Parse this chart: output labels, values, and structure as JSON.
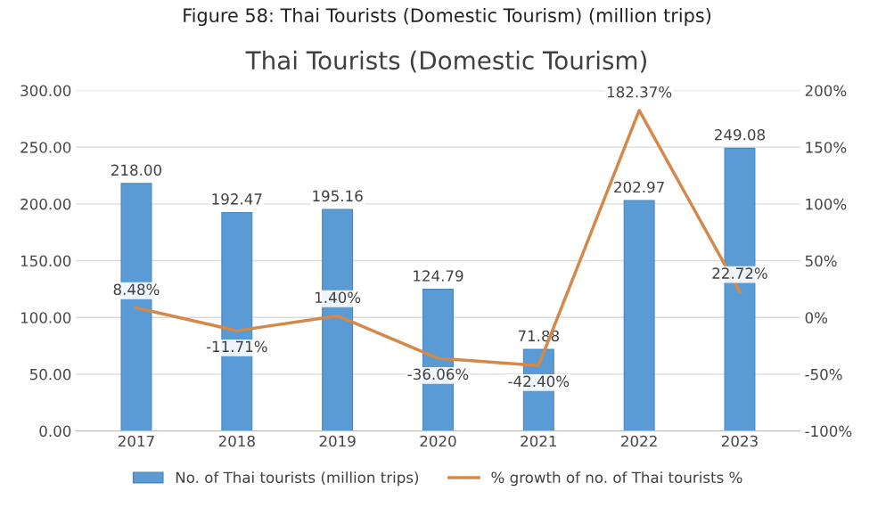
{
  "chart_data": {
    "type": "bar",
    "title": "Thai Tourists (Domestic Tourism)",
    "annotations": [
      "Figure 58: Thai Tourists (Domestic Tourism) (million trips)"
    ],
    "categories": [
      "2017",
      "2018",
      "2019",
      "2020",
      "2021",
      "2022",
      "2023"
    ],
    "series": [
      {
        "name": "No. of Thai tourists (million trips)",
        "color": "#5b9bd5",
        "values": [
          218.0,
          192.47,
          195.16,
          124.79,
          71.88,
          202.97,
          249.08
        ],
        "value_labels": [
          "218.00",
          "192.47",
          "195.16",
          "124.79",
          "71.88",
          "202.97",
          "249.08"
        ]
      },
      {
        "name": "% growth of no. of Thai tourists %",
        "type": "line",
        "axis": "y2",
        "color": "#d4884a",
        "values": [
          8.48,
          -11.71,
          1.4,
          -36.06,
          -42.4,
          182.37,
          22.72
        ],
        "value_labels": [
          "8.48%",
          "-11.71%",
          "1.40%",
          "-36.06%",
          "-42.40%",
          "182.37%",
          "22.72%"
        ]
      }
    ],
    "ylim": [
      0,
      300
    ],
    "yticks": [
      {
        "value": 0,
        "label": "0.00"
      },
      {
        "value": 50,
        "label": "50.00"
      },
      {
        "value": 100,
        "label": "100.00"
      },
      {
        "value": 150,
        "label": "150.00"
      },
      {
        "value": 200,
        "label": "200.00"
      },
      {
        "value": 250,
        "label": "250.00"
      },
      {
        "value": 300,
        "label": "300.00"
      }
    ],
    "y2lim": [
      -100,
      200
    ],
    "y2ticks": [
      {
        "value": -100,
        "label": "-100%"
      },
      {
        "value": -50,
        "label": "-50%"
      },
      {
        "value": 0,
        "label": "0%"
      },
      {
        "value": 50,
        "label": "50%"
      },
      {
        "value": 100,
        "label": "100%"
      },
      {
        "value": 150,
        "label": "150%"
      },
      {
        "value": 200,
        "label": "200%"
      }
    ],
    "grid": "y",
    "legend": "bottom",
    "marker": "none",
    "line_style": "solid"
  }
}
